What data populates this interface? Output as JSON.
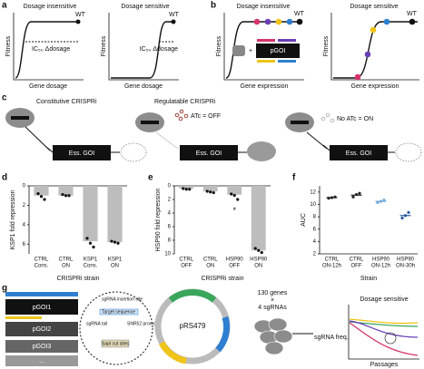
{
  "panel_a": {
    "letter": "a",
    "left_title": "Dosage insensitive",
    "right_title": "Dosage sensitive",
    "wt": "WT",
    "ylabel": "Fitness",
    "xlabel": "Gene dosage",
    "ic50": "IC₅₀ Δdosage"
  },
  "panel_b": {
    "letter": "b",
    "left_title": "Dosage insensitive",
    "right_title": "Dosage sensitive",
    "wt": "WT",
    "ylabel": "Fitness",
    "xlabel": "Gene expression",
    "plasmid": "pGOI"
  },
  "panel_c": {
    "letter": "c",
    "constitutive": "Constitutive CRISPRi",
    "regulatable": "Regulatable CRISPRi",
    "atc_off": "ATc = OFF",
    "atc_on": "No ATc = ON",
    "gene": "Ess. GOI"
  },
  "chart_data": [
    {
      "type": "bar",
      "panel": "d",
      "ylabel": "KSP1 fold repression",
      "xlabel": "CRISPRi strain",
      "categories": [
        [
          "CTRL",
          "Cons."
        ],
        [
          "CTRL",
          "ON"
        ],
        [
          "KSP1",
          "Cons."
        ],
        [
          "KSP1",
          "ON"
        ]
      ],
      "values": [
        1.0,
        1.0,
        5.7,
        5.8
      ],
      "points": [
        [
          0.8,
          1.1,
          1.4
        ],
        [
          0.9,
          1.0,
          1.0
        ],
        [
          5.4,
          5.9,
          6.3
        ],
        [
          5.7,
          5.8,
          5.9
        ]
      ],
      "color": "#bdbdbd",
      "point_color": "#111",
      "ylim": [
        0,
        7
      ],
      "yticks": [
        0,
        2,
        4,
        6
      ],
      "y_inverted": true
    },
    {
      "type": "bar",
      "panel": "e",
      "ylabel": "HSP90 fold repression",
      "xlabel": "CRISPRi strain",
      "categories": [
        [
          "CTRL",
          "OFF"
        ],
        [
          "CTRL",
          "ON"
        ],
        [
          "HSP90",
          "OFF"
        ],
        [
          "HSP90",
          "ON"
        ]
      ],
      "values": [
        0.4,
        0.8,
        1.3,
        9.5
      ],
      "points": [
        [
          0.4,
          0.5,
          0.5
        ],
        [
          0.8,
          0.9,
          1.0
        ],
        [
          1.2,
          1.4,
          2.0
        ],
        [
          9.2,
          9.5,
          9.8
        ]
      ],
      "outliers": [
        null,
        null,
        3.4,
        null
      ],
      "outlier_marker": "*",
      "color": "#bdbdbd",
      "point_color": "#111",
      "ylim": [
        0,
        10
      ],
      "yticks": [
        0,
        2,
        4,
        6,
        8,
        10
      ],
      "y_inverted": true
    },
    {
      "type": "dot",
      "panel": "f",
      "ylabel": "AUC",
      "xlabel": "Strain",
      "categories": [
        [
          "CTRL",
          "ON-12h"
        ],
        [
          "CTRL",
          "OFF"
        ],
        [
          "HSP90",
          "ON-12h"
        ],
        [
          "HSP90",
          "ON-30h"
        ]
      ],
      "values": [
        11.1,
        11.5,
        10.5,
        8.2
      ],
      "points": [
        [
          11.0,
          11.1,
          11.2
        ],
        [
          11.2,
          11.6,
          11.8
        ],
        [
          10.3,
          10.5,
          10.7
        ],
        [
          7.8,
          8.2,
          8.7
        ]
      ],
      "colors": [
        "#222222",
        "#222222",
        "#6fa8d6",
        "#2a5d9f"
      ],
      "ylim": [
        2,
        13
      ],
      "yticks": [
        2,
        4,
        6,
        8,
        10,
        12
      ],
      "y_inverted": false
    }
  ],
  "panel_g": {
    "letter": "g",
    "plasmids": [
      "pGOI1",
      "pGOI2",
      "pGOI3",
      "..."
    ],
    "insertion": "sgRNA insertion site",
    "target": "Target sequence",
    "tail": "sgRNA tail",
    "promoter": "SNR52 promoter",
    "sapi": "SapI cut sites",
    "vector": "pRS479",
    "library": [
      "130 genes",
      "×",
      "4 sgRNAs"
    ],
    "freq": "sgRNA freq.",
    "passages": "Passages",
    "sensitive": "Dosage sensitive"
  }
}
